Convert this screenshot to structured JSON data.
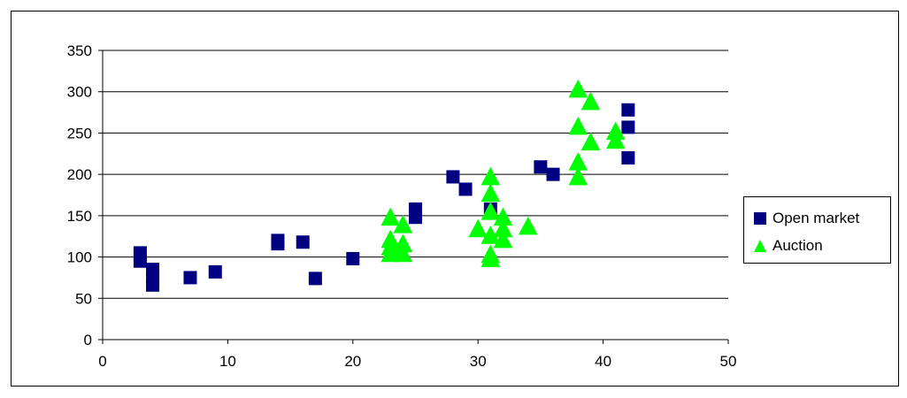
{
  "colors": {
    "open_market": "#000080",
    "auction": "#00ff00",
    "gridline": "#000000",
    "axis": "#000000"
  },
  "chart_data": {
    "type": "scatter",
    "title": "",
    "xlabel": "",
    "ylabel": "",
    "xlim": [
      0,
      50
    ],
    "ylim": [
      0,
      350
    ],
    "x_ticks": [
      "0",
      "10",
      "20",
      "30",
      "40",
      "50"
    ],
    "y_ticks": [
      "0",
      "50",
      "100",
      "150",
      "200",
      "250",
      "300",
      "350"
    ],
    "grid": "horizontal major gridlines",
    "legend_position": "right",
    "series": [
      {
        "name": "Open market",
        "marker": "square",
        "color": "#000080",
        "points": [
          [
            3,
            105
          ],
          [
            3,
            95
          ],
          [
            4,
            85
          ],
          [
            4,
            75
          ],
          [
            4,
            66
          ],
          [
            7,
            75
          ],
          [
            9,
            82
          ],
          [
            14,
            120
          ],
          [
            14,
            116
          ],
          [
            16,
            118
          ],
          [
            17,
            74
          ],
          [
            20,
            98
          ],
          [
            25,
            158
          ],
          [
            25,
            148
          ],
          [
            28,
            197
          ],
          [
            29,
            182
          ],
          [
            31,
            158
          ],
          [
            35,
            209
          ],
          [
            36,
            200
          ],
          [
            42,
            278
          ],
          [
            42,
            257
          ],
          [
            42,
            220
          ]
        ]
      },
      {
        "name": "Auction",
        "marker": "triangle",
        "color": "#00ff00",
        "points": [
          [
            23,
            147
          ],
          [
            23,
            120
          ],
          [
            23,
            111
          ],
          [
            23,
            103
          ],
          [
            24,
            138
          ],
          [
            24,
            115
          ],
          [
            24,
            103
          ],
          [
            30,
            133
          ],
          [
            31,
            196
          ],
          [
            31,
            176
          ],
          [
            31,
            154
          ],
          [
            31,
            125
          ],
          [
            31,
            102
          ],
          [
            31,
            97
          ],
          [
            32,
            147
          ],
          [
            32,
            133
          ],
          [
            32,
            120
          ],
          [
            34,
            136
          ],
          [
            38,
            302
          ],
          [
            38,
            257
          ],
          [
            38,
            214
          ],
          [
            38,
            196
          ],
          [
            39,
            287
          ],
          [
            39,
            238
          ],
          [
            41,
            251
          ],
          [
            41,
            240
          ]
        ]
      }
    ]
  },
  "legend": {
    "items": [
      {
        "label": "Open market",
        "marker": "square-icon"
      },
      {
        "label": "Auction",
        "marker": "triangle-icon"
      }
    ]
  }
}
